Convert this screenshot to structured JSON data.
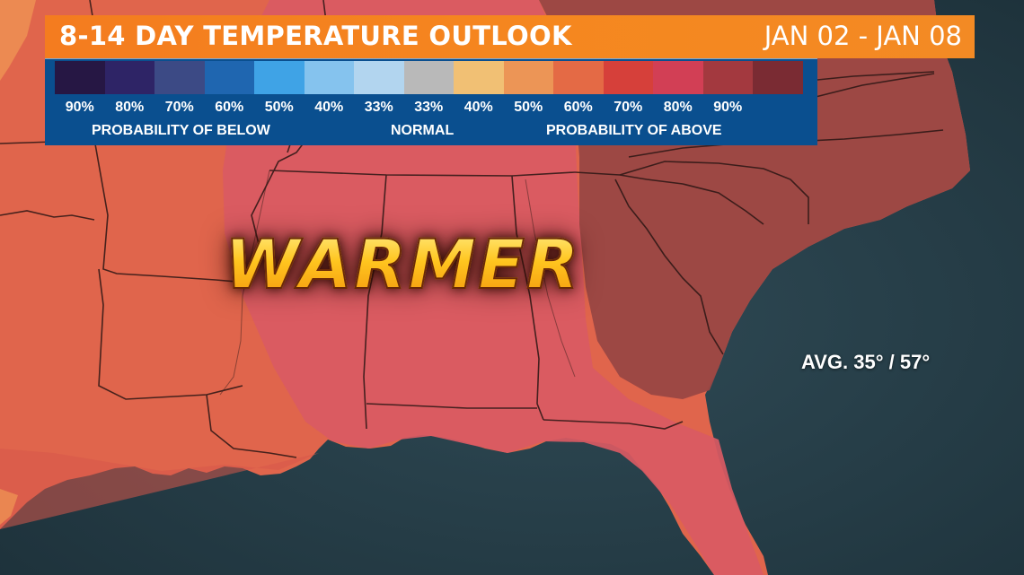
{
  "header": {
    "title": "8-14 DAY TEMPERATURE OUTLOOK",
    "date_range": "JAN 02 - JAN 08"
  },
  "legend": {
    "swatches": [
      {
        "label": "90%",
        "color": "#261744"
      },
      {
        "label": "80%",
        "color": "#2e2466"
      },
      {
        "label": "70%",
        "color": "#3c4a85"
      },
      {
        "label": "60%",
        "color": "#1f66b0"
      },
      {
        "label": "50%",
        "color": "#3fa3e6"
      },
      {
        "label": "40%",
        "color": "#85c3ee"
      },
      {
        "label": "33%",
        "color": "#b2d5ef"
      },
      {
        "label": "33%",
        "color": "#b9b9b9"
      },
      {
        "label": "40%",
        "color": "#f1c074"
      },
      {
        "label": "50%",
        "color": "#ec9556"
      },
      {
        "label": "60%",
        "color": "#e46a45"
      },
      {
        "label": "70%",
        "color": "#d6403a"
      },
      {
        "label": "80%",
        "color": "#d23f55"
      },
      {
        "label": "90%",
        "color": "#a3393f"
      },
      {
        "label": "",
        "color": "#7a2b33"
      }
    ],
    "below_caption": "PROBABILITY OF BELOW",
    "normal_caption": "NORMAL",
    "above_caption": "PROBABILITY OF ABOVE"
  },
  "map": {
    "headline": "WARMER",
    "average_note": "AVG. 35° / 57°",
    "colors": {
      "ocean": "#263d47",
      "land_50": "#e2684d",
      "land_60": "#dc5a5e",
      "land_70": "#9b4846",
      "border": "#2a1a18"
    }
  }
}
